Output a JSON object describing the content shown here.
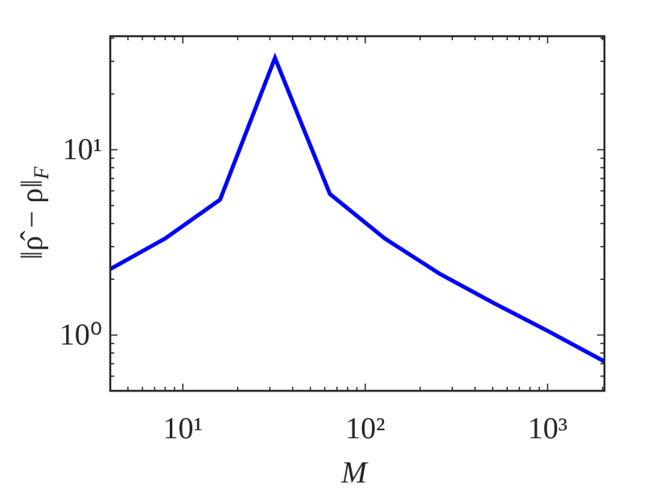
{
  "chart_data": {
    "type": "line",
    "xlabel": "M",
    "ylabel": "‖ρ̂ − ρ‖",
    "ylabel_subscript": "F",
    "x": [
      4,
      8,
      16,
      32,
      64,
      128,
      256,
      512,
      1024,
      2048
    ],
    "series": [
      {
        "color": "#0000ff",
        "values": [
          2.27,
          3.32,
          5.38,
          31.3,
          5.77,
          3.32,
          2.14,
          1.48,
          1.04,
          0.72
        ]
      }
    ],
    "xscale": "log",
    "yscale": "log",
    "xlim": [
      4,
      2048
    ],
    "ylim": [
      0.5,
      41
    ],
    "xticks": [
      {
        "value": 10,
        "label": "10¹"
      },
      {
        "value": 100,
        "label": "10²"
      },
      {
        "value": 1000,
        "label": "10³"
      }
    ],
    "yticks": [
      {
        "value": 1,
        "label": "10⁰"
      },
      {
        "value": 10,
        "label": "10¹"
      }
    ],
    "xminorticks": [
      4,
      5,
      6,
      7,
      8,
      9,
      20,
      30,
      40,
      50,
      60,
      70,
      80,
      90,
      200,
      300,
      400,
      500,
      600,
      700,
      800,
      900,
      2000
    ],
    "yminorticks": [
      0.5,
      0.6,
      0.7,
      0.8,
      0.9,
      2,
      3,
      4,
      5,
      6,
      7,
      8,
      9,
      20,
      30,
      40
    ],
    "grid": false
  }
}
